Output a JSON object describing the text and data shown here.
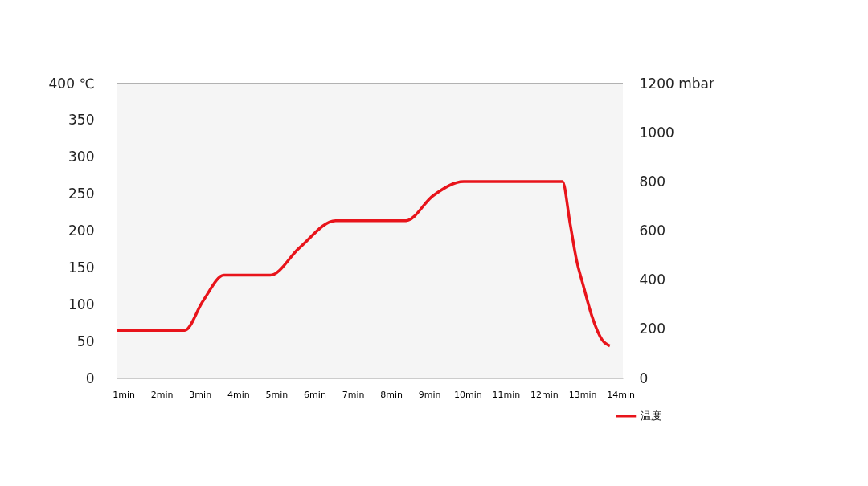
{
  "chart_data": {
    "type": "line",
    "x": [
      0.82,
      2.6,
      3.08,
      3.63,
      4.84,
      5.6,
      6.55,
      8.39,
      9.1,
      9.9,
      12.48,
      12.68,
      12.85,
      13.02,
      13.26,
      13.52,
      13.72
    ],
    "series": [
      {
        "name": "温度",
        "color": "#e8141b",
        "values": [
          65,
          65,
          105,
          140,
          140,
          177,
          214,
          214,
          248,
          267,
          267,
          210,
          160,
          127,
          83,
          52,
          44
        ]
      }
    ],
    "xlim": [
      0.82,
      14.06
    ],
    "xticks": [
      {
        "value": 1,
        "label": "1min"
      },
      {
        "value": 2,
        "label": "2min"
      },
      {
        "value": 3,
        "label": "3min"
      },
      {
        "value": 4,
        "label": "4min"
      },
      {
        "value": 5,
        "label": "5min"
      },
      {
        "value": 6,
        "label": "6min"
      },
      {
        "value": 7,
        "label": "7min"
      },
      {
        "value": 8,
        "label": "8min"
      },
      {
        "value": 9,
        "label": "9min"
      },
      {
        "value": 10,
        "label": "10min"
      },
      {
        "value": 11,
        "label": "11min"
      },
      {
        "value": 12,
        "label": "12min"
      },
      {
        "value": 13,
        "label": "13min"
      },
      {
        "value": 14,
        "label": "14min"
      }
    ],
    "ylim": [
      0,
      400
    ],
    "yticks": [
      0,
      50,
      100,
      150,
      200,
      250,
      300,
      350,
      {
        "value": 400,
        "label": "400 ℃"
      }
    ],
    "y2lim": [
      0,
      1200
    ],
    "y2ticks": [
      0,
      200,
      400,
      600,
      800,
      1000,
      {
        "value": 1200,
        "label": "1200 mbar"
      }
    ],
    "ref_lines": [
      {
        "axis": "y",
        "value": 400,
        "color": "#999999"
      }
    ],
    "legend": "bottom right",
    "grid": false,
    "marker": "none",
    "line_style": "solid"
  }
}
